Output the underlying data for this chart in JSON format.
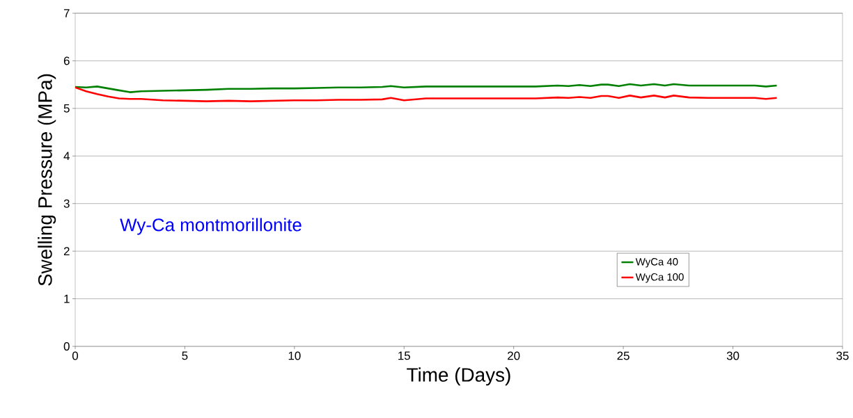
{
  "chart_data": {
    "type": "line",
    "xlabel": "Time (Days)",
    "ylabel": "Swelling Pressure (MPa)",
    "xlim": [
      0,
      35
    ],
    "xticks": [
      0,
      5,
      10,
      15,
      20,
      25,
      30,
      35
    ],
    "ylim": [
      0,
      7
    ],
    "yticks": [
      0,
      1,
      2,
      3,
      4,
      5,
      6,
      7
    ],
    "grid": "y",
    "legend": "bottom right",
    "marker": "none",
    "line_style": "solid",
    "annotations": [
      "Wy-Ca montmorillonite"
    ],
    "series": [
      {
        "name": "WyCa 40",
        "color": "#008000",
        "x": [
          0,
          0.5,
          1,
          1.5,
          2,
          2.5,
          3,
          4,
          5,
          6,
          7,
          8,
          9,
          10,
          11,
          12,
          13,
          14,
          14.4,
          15,
          16,
          18,
          20,
          21,
          22,
          22.5,
          23,
          23.5,
          24,
          24.3,
          24.8,
          25.3,
          25.8,
          26.4,
          26.9,
          27.3,
          28,
          29,
          30,
          31,
          31.5,
          32
        ],
        "values": [
          5.45,
          5.44,
          5.46,
          5.42,
          5.38,
          5.34,
          5.36,
          5.37,
          5.38,
          5.39,
          5.41,
          5.41,
          5.42,
          5.42,
          5.43,
          5.44,
          5.44,
          5.45,
          5.47,
          5.44,
          5.46,
          5.46,
          5.46,
          5.46,
          5.48,
          5.47,
          5.49,
          5.47,
          5.5,
          5.5,
          5.47,
          5.51,
          5.48,
          5.51,
          5.48,
          5.51,
          5.48,
          5.48,
          5.48,
          5.48,
          5.46,
          5.48
        ]
      },
      {
        "name": "WyCa 100",
        "color": "#ff0000",
        "x": [
          0,
          0.5,
          1,
          1.5,
          2,
          2.5,
          3,
          4,
          5,
          6,
          7,
          8,
          9,
          10,
          11,
          12,
          13,
          14,
          14.4,
          15,
          16,
          18,
          20,
          21,
          22,
          22.5,
          23,
          23.5,
          24,
          24.3,
          24.8,
          25.3,
          25.8,
          26.4,
          26.9,
          27.3,
          28,
          29,
          30,
          31,
          31.5,
          32
        ],
        "values": [
          5.44,
          5.36,
          5.3,
          5.25,
          5.21,
          5.2,
          5.2,
          5.17,
          5.16,
          5.15,
          5.16,
          5.15,
          5.16,
          5.17,
          5.17,
          5.18,
          5.18,
          5.19,
          5.22,
          5.17,
          5.21,
          5.21,
          5.21,
          5.21,
          5.23,
          5.22,
          5.24,
          5.22,
          5.26,
          5.26,
          5.22,
          5.27,
          5.23,
          5.27,
          5.23,
          5.27,
          5.23,
          5.22,
          5.22,
          5.22,
          5.2,
          5.22
        ]
      }
    ]
  }
}
